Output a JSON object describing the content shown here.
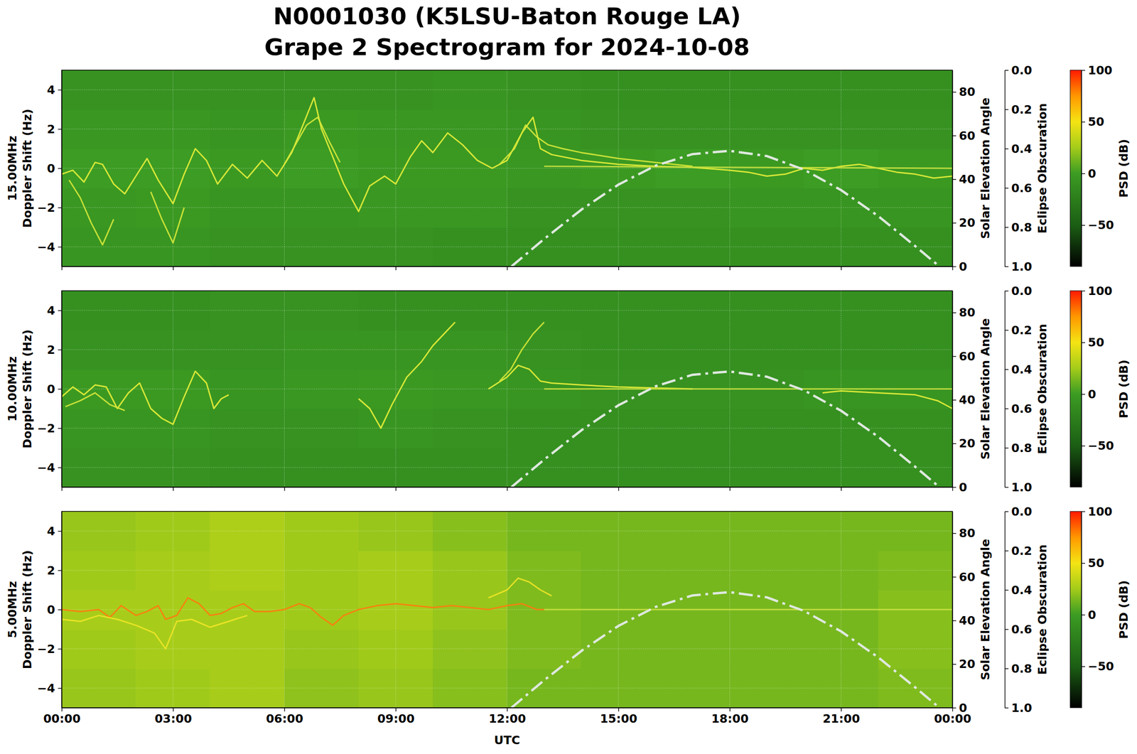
{
  "title": "N0001030 (K5LSU-Baton Rouge LA)",
  "subtitle": "Grape 2 Spectrogram for 2024-10-08",
  "chart_data": [
    {
      "type": "heatmap",
      "y_label": [
        "15.00MHz",
        "Doppler Shift (Hz)"
      ],
      "y2_label": "Solar Elevation Angle",
      "y3_label": "Eclipse Obscuration",
      "xlim": [
        0,
        24
      ],
      "xticks": [
        0,
        3,
        6,
        9,
        12,
        15,
        18,
        21,
        24
      ],
      "ylim": [
        -5,
        5
      ],
      "yticks": [
        {
          "value": -4,
          "label": "−4"
        },
        {
          "value": -2,
          "label": "−2"
        },
        0,
        2,
        4
      ],
      "y2lim": [
        0,
        90
      ],
      "y2ticks": [
        0,
        20,
        40,
        60,
        80
      ],
      "y3lim": [
        1,
        0
      ],
      "y3ticks": [
        {
          "value": 0,
          "label": "0.0"
        },
        {
          "value": 0.2,
          "label": "0.2"
        },
        {
          "value": 0.4,
          "label": "0.4"
        },
        {
          "value": 0.6,
          "label": "0.6"
        },
        {
          "value": 0.8,
          "label": "0.8"
        },
        {
          "value": 1,
          "label": "1.0"
        }
      ],
      "grid": true,
      "tick_labels": "y",
      "colorbar": {
        "label": "PSD (dB)",
        "range": [
          -90,
          100
        ],
        "ticks": [
          {
            "value": -50,
            "label": "−50"
          },
          0,
          50,
          100
        ]
      },
      "cells": {
        "x_edges": [
          0,
          2,
          4,
          6,
          8,
          10,
          12,
          14,
          16,
          18,
          20,
          22,
          24
        ],
        "y_edges": [
          -5,
          -3,
          -1,
          1,
          3,
          5
        ],
        "z": [
          [
            -6,
            -6,
            -8,
            -8,
            -8,
            -10,
            -10,
            -10,
            -10,
            -10,
            -10,
            -10
          ],
          [
            -4,
            -2,
            -6,
            -6,
            -4,
            -4,
            -8,
            -8,
            -8,
            -6,
            -6,
            -6
          ],
          [
            0,
            0,
            -2,
            0,
            -2,
            -2,
            -4,
            -2,
            0,
            -2,
            0,
            -2
          ],
          [
            -4,
            -4,
            -6,
            -2,
            -4,
            -4,
            -6,
            -8,
            -8,
            -8,
            -8,
            -8
          ],
          [
            -8,
            -8,
            -8,
            -8,
            -8,
            -6,
            -8,
            -10,
            -10,
            -10,
            -10,
            -10
          ]
        ]
      },
      "series": [
        {
          "color": "#e8f03a",
          "x": [
            0,
            0.3,
            0.6,
            0.9,
            1.1,
            1.4,
            1.7,
            2.0,
            2.3,
            2.6,
            3.0,
            3.3,
            3.6,
            3.9,
            4.2,
            4.6,
            5.0,
            5.4,
            5.8,
            6.2,
            6.5,
            6.8,
            7.0,
            7.3,
            7.6,
            8.0,
            8.3,
            8.7,
            9.0,
            9.4,
            9.7,
            10.0,
            10.4,
            10.8,
            11.2,
            11.6,
            12.0,
            12.4,
            12.7,
            12.9,
            13.2,
            14,
            15,
            16,
            17,
            18,
            18.5,
            19,
            19.5,
            20,
            20.5,
            21,
            21.5,
            22,
            22.5,
            23,
            23.5,
            24
          ],
          "values": [
            -0.3,
            -0.1,
            -0.7,
            0.3,
            0.2,
            -0.8,
            -1.3,
            -0.4,
            0.5,
            -0.6,
            -1.8,
            -0.3,
            1.0,
            0.4,
            -0.8,
            0.2,
            -0.5,
            0.4,
            -0.4,
            0.8,
            2.2,
            3.6,
            2.0,
            0.6,
            -0.8,
            -2.2,
            -0.9,
            -0.4,
            -0.8,
            0.6,
            1.4,
            0.8,
            1.8,
            1.2,
            0.4,
            0.0,
            0.4,
            1.8,
            2.6,
            1.0,
            0.7,
            0.4,
            0.2,
            0.1,
            0.05,
            -0.1,
            -0.2,
            -0.4,
            -0.3,
            0.0,
            -0.1,
            0.1,
            0.2,
            0.0,
            -0.2,
            -0.3,
            -0.5,
            -0.4
          ]
        },
        {
          "color": "#d6e83a",
          "x": [
            0.2,
            0.5,
            0.8,
            1.1,
            1.4,
            1.5,
            2.4,
            2.7,
            3.0,
            3.3,
            3.4,
            6.0,
            6.3,
            6.6,
            6.9,
            7.2,
            7.5,
            7.6,
            11.8,
            12.2,
            12.5,
            12.8,
            13.1,
            13.5,
            14,
            15,
            16,
            17
          ],
          "values": [
            -0.6,
            -1.5,
            -2.8,
            -3.9,
            -2.6,
            null,
            -1.2,
            -2.6,
            -3.8,
            -2.0,
            null,
            0.2,
            1.2,
            2.2,
            2.6,
            1.4,
            0.3,
            null,
            0.2,
            1.0,
            2.2,
            1.6,
            1.2,
            1.0,
            0.8,
            0.5,
            0.3,
            0.1
          ]
        },
        {
          "color": "#c8e040",
          "x": [
            13,
            18,
            24
          ],
          "values": [
            0.1,
            0.05,
            0.0
          ]
        },
        {
          "axis": "y2",
          "color": "#dfe8df",
          "line_style": "dashdot",
          "x": [
            12.12,
            13,
            14,
            15,
            16,
            17,
            18,
            19,
            20,
            21,
            22,
            23,
            23.65
          ],
          "values": [
            0,
            12.6,
            26,
            37.5,
            46.2,
            51.5,
            53,
            50.6,
            44.4,
            35,
            23.1,
            9.3,
            0
          ]
        }
      ]
    },
    {
      "type": "heatmap",
      "y_label": [
        "10.00MHz",
        "Doppler Shift (Hz)"
      ],
      "y2_label": "Solar Elevation Angle",
      "y3_label": "Eclipse Obscuration",
      "xlim": [
        0,
        24
      ],
      "xticks": [
        0,
        3,
        6,
        9,
        12,
        15,
        18,
        21,
        24
      ],
      "ylim": [
        -5,
        5
      ],
      "yticks": [
        {
          "value": -4,
          "label": "−4"
        },
        {
          "value": -2,
          "label": "−2"
        },
        0,
        2,
        4
      ],
      "y2lim": [
        0,
        90
      ],
      "y2ticks": [
        0,
        20,
        40,
        60,
        80
      ],
      "y3lim": [
        1,
        0
      ],
      "y3ticks": [
        {
          "value": 0,
          "label": "0.0"
        },
        {
          "value": 0.2,
          "label": "0.2"
        },
        {
          "value": 0.4,
          "label": "0.4"
        },
        {
          "value": 0.6,
          "label": "0.6"
        },
        {
          "value": 0.8,
          "label": "0.8"
        },
        {
          "value": 1,
          "label": "1.0"
        }
      ],
      "grid": true,
      "tick_labels": "y",
      "colorbar": {
        "label": "PSD (dB)",
        "range": [
          -90,
          100
        ],
        "ticks": [
          {
            "value": -50,
            "label": "−50"
          },
          0,
          50,
          100
        ]
      },
      "cells": {
        "x_edges": [
          0,
          2,
          4,
          6,
          8,
          10,
          12,
          14,
          16,
          18,
          20,
          22,
          24
        ],
        "y_edges": [
          -5,
          -3,
          -1,
          1,
          3,
          5
        ],
        "z": [
          [
            -8,
            -8,
            -10,
            -10,
            -10,
            -10,
            -10,
            -10,
            -10,
            -10,
            -10,
            -10
          ],
          [
            -6,
            -6,
            -8,
            -8,
            -6,
            -8,
            -10,
            -10,
            -10,
            -10,
            -10,
            -10
          ],
          [
            -2,
            -2,
            -6,
            -4,
            -2,
            -4,
            -6,
            -8,
            -8,
            -8,
            -6,
            -6
          ],
          [
            -8,
            -8,
            -8,
            -6,
            -6,
            -6,
            -8,
            -10,
            -10,
            -10,
            -10,
            -10
          ],
          [
            -10,
            -10,
            -8,
            -8,
            -10,
            -10,
            -10,
            -10,
            -10,
            -10,
            -10,
            -10
          ]
        ]
      },
      "series": [
        {
          "color": "#e8f03a",
          "x": [
            0,
            0.3,
            0.6,
            0.9,
            1.2,
            1.5,
            1.8,
            2.1,
            2.4,
            2.7,
            3.0,
            3.3,
            3.6,
            3.9,
            4.1,
            4.3,
            4.5,
            4.6,
            8.0,
            8.3,
            8.6,
            8.9,
            9.3,
            9.7,
            10.0,
            10.3,
            10.6,
            10.7,
            11.5,
            12.0,
            12.3,
            12.6,
            12.9,
            13.2,
            14,
            15,
            16,
            17,
            17.1,
            20.5,
            21,
            22,
            23,
            23.6,
            24
          ],
          "values": [
            -0.4,
            0.1,
            -0.3,
            0.2,
            0.1,
            -1.0,
            -0.2,
            0.3,
            -1.0,
            -1.5,
            -1.8,
            -0.4,
            0.9,
            0.3,
            -1.0,
            -0.5,
            -0.3,
            null,
            -0.5,
            -1.0,
            -2.0,
            -0.8,
            0.6,
            1.4,
            2.2,
            2.8,
            3.4,
            null,
            0.0,
            0.6,
            1.2,
            1.0,
            0.4,
            0.3,
            0.2,
            0.1,
            0.05,
            0.0,
            null,
            -0.2,
            -0.1,
            -0.2,
            -0.3,
            -0.6,
            -1.0
          ]
        },
        {
          "color": "#d6e83a",
          "x": [
            0.1,
            0.5,
            0.9,
            1.3,
            1.7,
            1.8,
            11.8,
            12.1,
            12.4,
            12.7,
            13.0
          ],
          "values": [
            -0.9,
            -0.6,
            -0.2,
            -0.8,
            -1.1,
            null,
            0.4,
            1.0,
            2.0,
            2.8,
            3.4
          ]
        },
        {
          "color": "#c8e040",
          "x": [
            13,
            24
          ],
          "values": [
            0.0,
            0.0
          ]
        },
        {
          "axis": "y2",
          "color": "#dfe8df",
          "line_style": "dashdot",
          "x": [
            12.12,
            13,
            14,
            15,
            16,
            17,
            18,
            19,
            20,
            21,
            22,
            23,
            23.65
          ],
          "values": [
            0,
            12.6,
            26,
            37.5,
            46.2,
            51.5,
            53,
            50.6,
            44.4,
            35,
            23.1,
            9.3,
            0
          ]
        }
      ]
    },
    {
      "type": "heatmap",
      "y_label": [
        "5.00MHz",
        "Doppler Shift (Hz)"
      ],
      "y2_label": "Solar Elevation Angle",
      "y3_label": "Eclipse Obscuration",
      "x_label": "UTC",
      "xlim": [
        0,
        24
      ],
      "xticks": [
        {
          "value": 0,
          "label": "00:00"
        },
        {
          "value": 3,
          "label": "03:00"
        },
        {
          "value": 6,
          "label": "06:00"
        },
        {
          "value": 9,
          "label": "09:00"
        },
        {
          "value": 12,
          "label": "12:00"
        },
        {
          "value": 15,
          "label": "15:00"
        },
        {
          "value": 18,
          "label": "18:00"
        },
        {
          "value": 21,
          "label": "21:00"
        },
        {
          "value": 24,
          "label": "00:00"
        }
      ],
      "ylim": [
        -5,
        5
      ],
      "yticks": [
        {
          "value": -4,
          "label": "−4"
        },
        {
          "value": -2,
          "label": "−2"
        },
        0,
        2,
        4
      ],
      "y2lim": [
        0,
        90
      ],
      "y2ticks": [
        0,
        20,
        40,
        60,
        80
      ],
      "y3lim": [
        1,
        0
      ],
      "y3ticks": [
        {
          "value": 0,
          "label": "0.0"
        },
        {
          "value": 0.2,
          "label": "0.2"
        },
        {
          "value": 0.4,
          "label": "0.4"
        },
        {
          "value": 0.6,
          "label": "0.6"
        },
        {
          "value": 0.8,
          "label": "0.8"
        },
        {
          "value": 1,
          "label": "1.0"
        }
      ],
      "grid": true,
      "colorbar": {
        "label": "PSD (dB)",
        "range": [
          -90,
          100
        ],
        "ticks": [
          {
            "value": -50,
            "label": "−50"
          },
          0,
          50,
          100
        ]
      },
      "cells": {
        "x_edges": [
          0,
          2,
          4,
          6,
          8,
          10,
          12,
          14,
          16,
          18,
          20,
          22,
          24
        ],
        "y_edges": [
          -5,
          -3,
          -1,
          1,
          3,
          5
        ],
        "z": [
          [
            22,
            24,
            26,
            20,
            22,
            18,
            14,
            14,
            14,
            14,
            14,
            16
          ],
          [
            24,
            26,
            26,
            22,
            24,
            20,
            16,
            14,
            14,
            14,
            14,
            18
          ],
          [
            26,
            26,
            26,
            24,
            26,
            22,
            16,
            14,
            14,
            14,
            14,
            18
          ],
          [
            24,
            26,
            28,
            24,
            26,
            22,
            16,
            14,
            14,
            14,
            14,
            16
          ],
          [
            22,
            24,
            28,
            24,
            22,
            18,
            14,
            14,
            14,
            14,
            14,
            14
          ]
        ]
      },
      "series": [
        {
          "color": "#ff7a10",
          "x": [
            0,
            0.5,
            1.0,
            1.3,
            1.6,
            2.0,
            2.3,
            2.6,
            2.8,
            3.1,
            3.4,
            3.7,
            4.0,
            4.3,
            4.6,
            4.9,
            5.2,
            5.6,
            6.0,
            6.4,
            6.7,
            7.0,
            7.3,
            7.6,
            8.0,
            8.5,
            9.0,
            9.5,
            10,
            10.5,
            11,
            11.5,
            12,
            12.4,
            12.8,
            13.0
          ],
          "values": [
            0.0,
            -0.1,
            0.0,
            -0.4,
            0.2,
            -0.3,
            -0.1,
            0.2,
            -0.5,
            -0.3,
            0.6,
            0.3,
            -0.3,
            -0.2,
            0.1,
            0.3,
            -0.1,
            -0.1,
            0.0,
            0.3,
            0.1,
            -0.4,
            -0.8,
            -0.3,
            0.0,
            0.2,
            0.3,
            0.2,
            0.1,
            0.2,
            0.1,
            0.0,
            0.2,
            0.3,
            0.0,
            0.0
          ]
        },
        {
          "color": "#f0e628",
          "x": [
            0,
            0.5,
            1.0,
            1.5,
            2.0,
            2.5,
            2.8,
            3.1,
            3.5,
            4.0,
            4.5,
            5.0,
            5.1,
            11.5,
            12.0,
            12.3,
            12.6,
            12.9,
            13.2
          ],
          "values": [
            -0.5,
            -0.6,
            -0.3,
            -0.5,
            -0.8,
            -1.2,
            -2.0,
            -0.6,
            -0.5,
            -0.9,
            -0.6,
            -0.3,
            null,
            0.6,
            1.0,
            1.6,
            1.4,
            1.0,
            0.7
          ]
        },
        {
          "color": "#c8e040",
          "x": [
            13,
            24
          ],
          "values": [
            0.0,
            0.0
          ]
        },
        {
          "axis": "y2",
          "color": "#dfe8df",
          "line_style": "dashdot",
          "x": [
            12.12,
            13,
            14,
            15,
            16,
            17,
            18,
            19,
            20,
            21,
            22,
            23,
            23.65
          ],
          "values": [
            0,
            12.6,
            26,
            37.5,
            46.2,
            51.5,
            53,
            50.6,
            44.4,
            35,
            23.1,
            9.3,
            0
          ]
        }
      ]
    }
  ]
}
